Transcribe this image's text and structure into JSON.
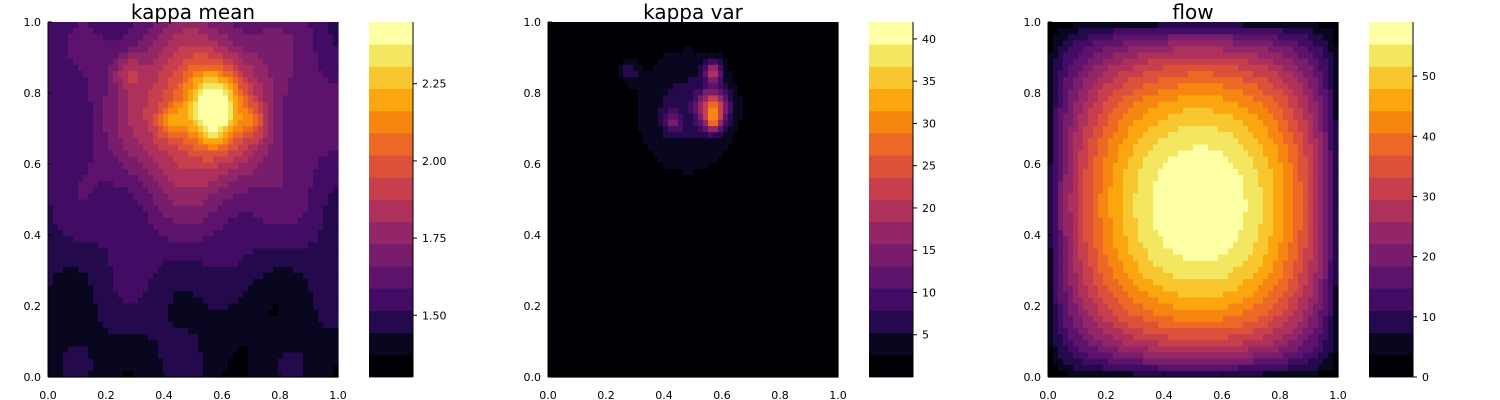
{
  "figure": {
    "panels": [
      {
        "title": "kappa mean",
        "type": "heatmap",
        "field": "kappa_mean",
        "xlim": [
          0,
          1
        ],
        "ylim": [
          0,
          1
        ],
        "x_ticks": [
          "0.0",
          "0.2",
          "0.4",
          "0.6",
          "0.8",
          "1.0"
        ],
        "y_ticks": [
          "0.0",
          "0.2",
          "0.4",
          "0.6",
          "0.8",
          "1.0"
        ],
        "colorbar": {
          "range": [
            1.3,
            2.45
          ],
          "ticks": [
            1.5,
            1.75,
            2.0,
            2.25
          ],
          "tick_labels": [
            "1.50",
            "1.75",
            "2.00",
            "2.25"
          ]
        }
      },
      {
        "title": "kappa var",
        "type": "heatmap",
        "field": "kappa_var",
        "xlim": [
          0,
          1
        ],
        "ylim": [
          0,
          1
        ],
        "x_ticks": [
          "0.0",
          "0.2",
          "0.4",
          "0.6",
          "0.8",
          "1.0"
        ],
        "y_ticks": [
          "0.0",
          "0.2",
          "0.4",
          "0.6",
          "0.8",
          "1.0"
        ],
        "colorbar": {
          "range": [
            0,
            42
          ],
          "ticks": [
            5,
            10,
            15,
            20,
            25,
            30,
            35,
            40
          ],
          "tick_labels": [
            "5",
            "10",
            "15",
            "20",
            "25",
            "30",
            "35",
            "40"
          ]
        }
      },
      {
        "title": "flow",
        "type": "heatmap",
        "field": "flow",
        "xlim": [
          0,
          1
        ],
        "ylim": [
          0,
          1
        ],
        "x_ticks": [
          "0.0",
          "0.2",
          "0.4",
          "0.6",
          "0.8",
          "1.0"
        ],
        "y_ticks": [
          "0.0",
          "0.2",
          "0.4",
          "0.6",
          "0.8",
          "1.0"
        ],
        "colorbar": {
          "range": [
            0,
            59
          ],
          "ticks": [
            0,
            10,
            20,
            30,
            40,
            50
          ],
          "tick_labels": [
            "0",
            "10",
            "20",
            "30",
            "40",
            "50"
          ]
        }
      }
    ],
    "colormap": "inferno",
    "colorbar_levels": 16
  },
  "chart_data": [
    {
      "type": "heatmap",
      "title": "kappa mean",
      "xlabel": "",
      "ylabel": "",
      "xlim": [
        0,
        1
      ],
      "ylim": [
        0,
        1
      ],
      "zlim": [
        1.3,
        2.45
      ],
      "x_ticks": [
        0,
        0.2,
        0.4,
        0.6,
        0.8,
        1.0
      ],
      "y_ticks": [
        0,
        0.2,
        0.4,
        0.6,
        0.8,
        1.0
      ],
      "features": {
        "background": 1.55,
        "peaks": [
          {
            "x": 0.28,
            "y": 0.86,
            "value": 2.15
          },
          {
            "x": 0.43,
            "y": 0.72,
            "value": 2.3
          },
          {
            "x": 0.57,
            "y": 0.86,
            "value": 2.42
          },
          {
            "x": 0.57,
            "y": 0.72,
            "value": 2.42
          },
          {
            "x": 0.71,
            "y": 0.72,
            "value": 2.3
          }
        ],
        "minimum_region": {
          "x": 0.7,
          "y": 0.2,
          "value": 1.35
        }
      },
      "grid": false,
      "colormap": "inferno"
    },
    {
      "type": "heatmap",
      "title": "kappa var",
      "xlabel": "",
      "ylabel": "",
      "xlim": [
        0,
        1
      ],
      "ylim": [
        0,
        1
      ],
      "zlim": [
        0,
        42
      ],
      "x_ticks": [
        0,
        0.2,
        0.4,
        0.6,
        0.8,
        1.0
      ],
      "y_ticks": [
        0,
        0.2,
        0.4,
        0.6,
        0.8,
        1.0
      ],
      "features": {
        "background": 0.5,
        "peaks": [
          {
            "x": 0.28,
            "y": 0.86,
            "value": 10
          },
          {
            "x": 0.43,
            "y": 0.72,
            "value": 22
          },
          {
            "x": 0.57,
            "y": 0.86,
            "value": 36
          },
          {
            "x": 0.57,
            "y": 0.72,
            "value": 41
          }
        ]
      },
      "grid": false,
      "colormap": "inferno"
    },
    {
      "type": "heatmap",
      "title": "flow",
      "xlabel": "",
      "ylabel": "",
      "xlim": [
        0,
        1
      ],
      "ylim": [
        0,
        1
      ],
      "zlim": [
        0,
        59
      ],
      "x_ticks": [
        0,
        0.2,
        0.4,
        0.6,
        0.8,
        1.0
      ],
      "y_ticks": [
        0,
        0.2,
        0.4,
        0.6,
        0.8,
        1.0
      ],
      "features": {
        "boundary_value": 0,
        "maximum": {
          "x": 0.47,
          "y": 0.6,
          "value": 58
        }
      },
      "grid": false,
      "colormap": "inferno"
    }
  ]
}
